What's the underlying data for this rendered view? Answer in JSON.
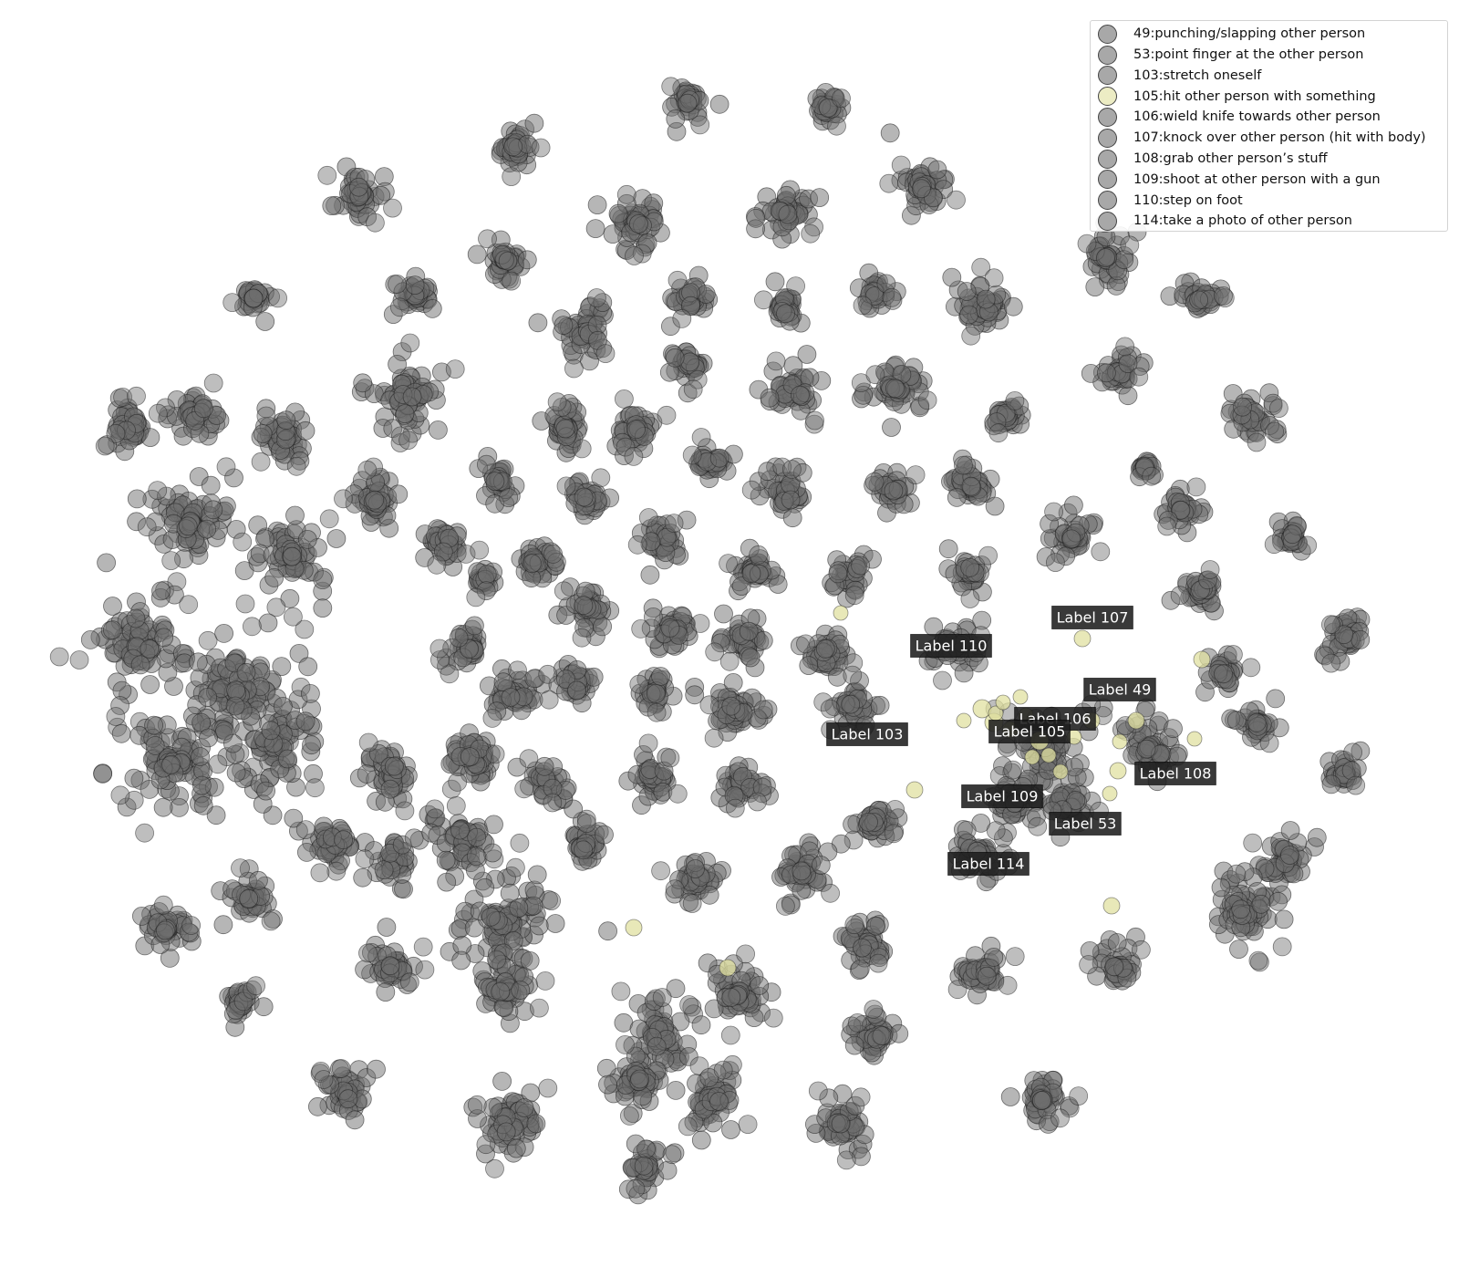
{
  "chart_data": {
    "type": "scatter",
    "title": "",
    "xlabel": "",
    "ylabel": "",
    "axes_visible": false,
    "grid": false,
    "legend_position": "top-right",
    "colors": {
      "default_point": "#6e6e6e",
      "highlight_point": "#e0e0a0",
      "point_edge": "#222222",
      "annotation_bg": "#1e1e1e",
      "annotation_text": "#ffffff"
    },
    "highlight_label": "105",
    "legend": [
      {
        "id": "49",
        "label": "49:punching/slapping other person",
        "color": "#a8a8a8"
      },
      {
        "id": "53",
        "label": "53:point finger at the other person",
        "color": "#a8a8a8"
      },
      {
        "id": "103",
        "label": "103:stretch oneself",
        "color": "#a8a8a8"
      },
      {
        "id": "105",
        "label": "105:hit other person with something",
        "color": "#ececc4"
      },
      {
        "id": "106",
        "label": "106:wield knife towards other person",
        "color": "#a8a8a8"
      },
      {
        "id": "107",
        "label": "107:knock over other person (hit with body)",
        "color": "#a8a8a8"
      },
      {
        "id": "108",
        "label": "108:grab other person’s stuff",
        "color": "#a8a8a8"
      },
      {
        "id": "109",
        "label": "109:shoot at other person with a gun",
        "color": "#a8a8a8"
      },
      {
        "id": "110",
        "label": "110:step on foot",
        "color": "#a8a8a8"
      },
      {
        "id": "114",
        "label": "114:take a photo of other person",
        "color": "#a8a8a8"
      }
    ],
    "annotations": [
      {
        "text": "Label 107",
        "x": 1198,
        "y": 677
      },
      {
        "text": "Label 110",
        "x": 1043,
        "y": 708
      },
      {
        "text": "Label 49",
        "x": 1228,
        "y": 756
      },
      {
        "text": "Label 106",
        "x": 1157,
        "y": 788
      },
      {
        "text": "Label 105",
        "x": 1129,
        "y": 802
      },
      {
        "text": "Label 103",
        "x": 951,
        "y": 805
      },
      {
        "text": "Label 108",
        "x": 1289,
        "y": 848
      },
      {
        "text": "Label 109",
        "x": 1099,
        "y": 873
      },
      {
        "text": "Label 53",
        "x": 1190,
        "y": 903
      },
      {
        "text": "Label 114",
        "x": 1084,
        "y": 947
      }
    ],
    "clusters": [
      [
        756,
        110,
        22
      ],
      [
        908,
        118,
        18
      ],
      [
        565,
        162,
        24
      ],
      [
        393,
        216,
        28
      ],
      [
        1012,
        205,
        30
      ],
      [
        862,
        232,
        30
      ],
      [
        697,
        244,
        30
      ],
      [
        553,
        285,
        22
      ],
      [
        1213,
        283,
        28
      ],
      [
        1317,
        327,
        20
      ],
      [
        278,
        327,
        18
      ],
      [
        456,
        322,
        22
      ],
      [
        757,
        326,
        20
      ],
      [
        861,
        338,
        20
      ],
      [
        960,
        320,
        20
      ],
      [
        1077,
        337,
        30
      ],
      [
        642,
        362,
        32
      ],
      [
        755,
        398,
        20
      ],
      [
        982,
        428,
        30
      ],
      [
        867,
        430,
        30
      ],
      [
        1227,
        408,
        24
      ],
      [
        1372,
        456,
        26
      ],
      [
        1103,
        455,
        18
      ],
      [
        452,
        435,
        46
      ],
      [
        140,
        468,
        30
      ],
      [
        620,
        470,
        26
      ],
      [
        700,
        472,
        26
      ],
      [
        215,
        455,
        30
      ],
      [
        310,
        478,
        30
      ],
      [
        780,
        508,
        24
      ],
      [
        862,
        540,
        26
      ],
      [
        548,
        528,
        20
      ],
      [
        643,
        545,
        20
      ],
      [
        980,
        538,
        20
      ],
      [
        1065,
        533,
        24
      ],
      [
        1175,
        590,
        28
      ],
      [
        1297,
        558,
        20
      ],
      [
        1416,
        590,
        20
      ],
      [
        726,
        595,
        26
      ],
      [
        825,
        626,
        20
      ],
      [
        930,
        632,
        20
      ],
      [
        1063,
        628,
        22
      ],
      [
        412,
        548,
        30
      ],
      [
        210,
        573,
        50
      ],
      [
        320,
        610,
        40
      ],
      [
        490,
        595,
        26
      ],
      [
        587,
        615,
        20
      ],
      [
        645,
        668,
        24
      ],
      [
        530,
        638,
        14
      ],
      [
        738,
        690,
        26
      ],
      [
        815,
        700,
        24
      ],
      [
        904,
        720,
        24
      ],
      [
        1048,
        710,
        26
      ],
      [
        1479,
        700,
        24
      ],
      [
        1317,
        648,
        20
      ],
      [
        1343,
        738,
        20
      ],
      [
        512,
        710,
        26
      ],
      [
        566,
        762,
        26
      ],
      [
        632,
        750,
        24
      ],
      [
        717,
        760,
        20
      ],
      [
        807,
        782,
        30
      ],
      [
        934,
        772,
        26
      ],
      [
        1146,
        820,
        50
      ],
      [
        1260,
        820,
        34
      ],
      [
        1378,
        792,
        20
      ],
      [
        1472,
        850,
        20
      ],
      [
        1112,
        881,
        28
      ],
      [
        1170,
        880,
        30
      ],
      [
        1072,
        936,
        30
      ],
      [
        150,
        710,
        60
      ],
      [
        260,
        760,
        70
      ],
      [
        190,
        835,
        60
      ],
      [
        300,
        815,
        50
      ],
      [
        430,
        850,
        30
      ],
      [
        515,
        830,
        30
      ],
      [
        598,
        855,
        26
      ],
      [
        714,
        850,
        26
      ],
      [
        810,
        860,
        26
      ],
      [
        960,
        900,
        26
      ],
      [
        365,
        925,
        28
      ],
      [
        432,
        945,
        24
      ],
      [
        508,
        918,
        30
      ],
      [
        643,
        928,
        24
      ],
      [
        275,
        985,
        24
      ],
      [
        185,
        1018,
        24
      ],
      [
        762,
        965,
        26
      ],
      [
        878,
        955,
        30
      ],
      [
        1410,
        945,
        30
      ],
      [
        1364,
        1000,
        40
      ],
      [
        548,
        1010,
        60
      ],
      [
        430,
        1060,
        30
      ],
      [
        950,
        1035,
        26
      ],
      [
        1078,
        1065,
        26
      ],
      [
        1225,
        1060,
        24
      ],
      [
        262,
        1100,
        20
      ],
      [
        555,
        1085,
        30
      ],
      [
        810,
        1090,
        36
      ],
      [
        720,
        1135,
        44
      ],
      [
        958,
        1138,
        26
      ],
      [
        380,
        1200,
        28
      ],
      [
        1143,
        1205,
        28
      ],
      [
        560,
        1228,
        40
      ],
      [
        780,
        1205,
        36
      ],
      [
        922,
        1232,
        30
      ],
      [
        708,
        1280,
        22
      ],
      [
        700,
        1185,
        30
      ],
      [
        1255,
        513,
        10
      ]
    ],
    "highlight_points": [
      [
        1077,
        777,
        10
      ],
      [
        1090,
        792,
        10
      ],
      [
        1108,
        800,
        9
      ],
      [
        1125,
        784,
        8
      ],
      [
        1140,
        812,
        10
      ],
      [
        1150,
        828,
        8
      ],
      [
        1092,
        782,
        8
      ],
      [
        1119,
        764,
        8
      ],
      [
        1132,
        830,
        8
      ],
      [
        1163,
        846,
        8
      ],
      [
        1178,
        808,
        8
      ],
      [
        1197,
        790,
        9
      ],
      [
        1228,
        813,
        8
      ],
      [
        1246,
        790,
        9
      ],
      [
        1226,
        845,
        9
      ],
      [
        1217,
        870,
        8
      ],
      [
        1187,
        700,
        9
      ],
      [
        1318,
        723,
        9
      ],
      [
        1310,
        810,
        8
      ],
      [
        1003,
        866,
        9
      ],
      [
        922,
        672,
        8
      ],
      [
        695,
        1017,
        9
      ],
      [
        798,
        1061,
        9
      ],
      [
        1219,
        993,
        9
      ],
      [
        1057,
        790,
        8
      ],
      [
        1100,
        770,
        8
      ]
    ]
  }
}
